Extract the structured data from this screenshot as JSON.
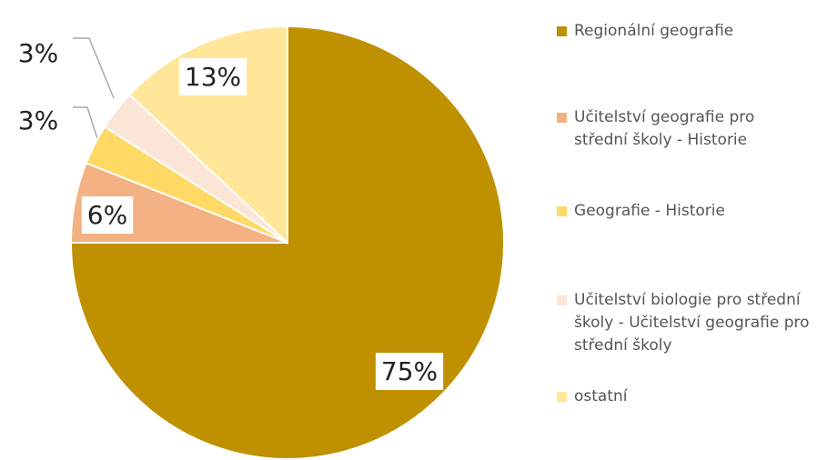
{
  "chart_data": {
    "type": "pie",
    "categories": [
      "Regionální geografie",
      "Učitelství geografie pro střední školy - Historie",
      "Geografie - Historie",
      "Učitelství biologie pro střední školy - Učitelství geografie pro střední školy",
      "ostatní"
    ],
    "values": [
      75,
      6,
      3,
      3,
      13
    ],
    "value_labels": [
      "75%",
      "6%",
      "3%",
      "3%",
      "13%"
    ],
    "colors": [
      "#bf9000",
      "#f4b183",
      "#ffd966",
      "#fbe5d6",
      "#ffe699"
    ]
  }
}
